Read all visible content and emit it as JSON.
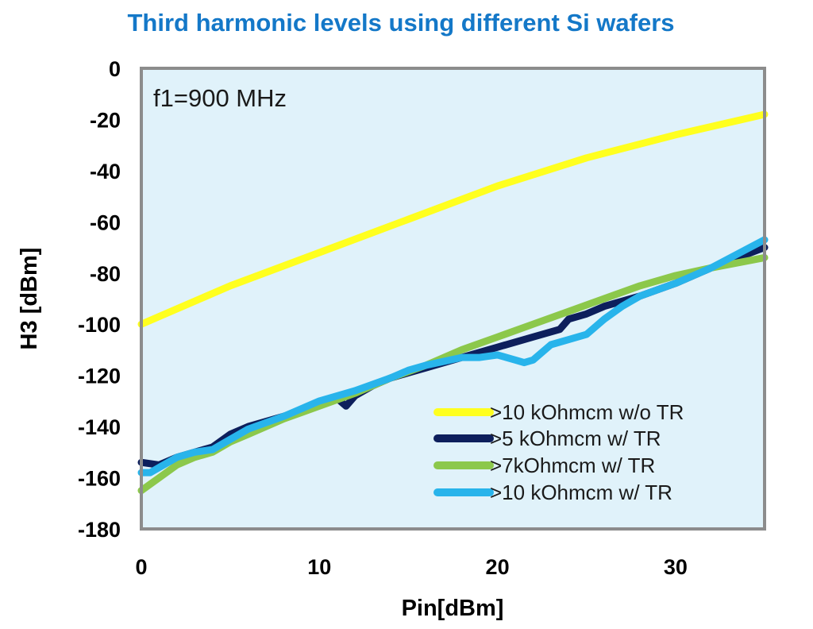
{
  "chart_data": {
    "type": "line",
    "title": "Third harmonic levels using different Si wafers",
    "xlabel": "Pin[dBm]",
    "ylabel": "H3 [dBm]",
    "annotation": "f1=900 MHz",
    "xlim": [
      0,
      35
    ],
    "ylim": [
      -180,
      0
    ],
    "x_ticks": [
      0,
      10,
      20,
      30
    ],
    "y_ticks": [
      0,
      -20,
      -40,
      -60,
      -80,
      -100,
      -120,
      -140,
      -160,
      -180
    ],
    "grid": false,
    "legend_position": "bottom-right",
    "colors": {
      "title": "#1478c8",
      "plot_background": "#e0f2fa",
      "plot_border": "#8c8c8c"
    },
    "series": [
      {
        "name": ">10 kOhmcm w/o TR",
        "color": "#ffff1f",
        "x": [
          0,
          5,
          10,
          15,
          20,
          25,
          30,
          35
        ],
        "y": [
          -100,
          -85,
          -72,
          -59,
          -46,
          -35,
          -26,
          -18
        ]
      },
      {
        "name": ">5 kOhmcm w/ TR",
        "color": "#0d1f5c",
        "x": [
          0,
          1,
          2,
          3,
          4,
          5,
          6,
          8,
          10,
          11,
          11.5,
          12,
          13,
          14,
          15,
          16,
          18,
          20,
          22,
          23.5,
          24,
          25,
          26,
          28,
          30,
          32,
          35
        ],
        "y": [
          -154,
          -155,
          -152,
          -150,
          -148,
          -143,
          -140,
          -136,
          -131,
          -129,
          -132,
          -128,
          -124,
          -121,
          -119,
          -117,
          -113,
          -109,
          -105,
          -102,
          -98,
          -96,
          -93,
          -89,
          -84,
          -78,
          -70
        ]
      },
      {
        "name": ">7kOhmcm w/ TR",
        "color": "#8cc84b",
        "x": [
          0,
          1,
          2,
          3,
          4,
          5,
          6,
          8,
          10,
          12,
          14,
          16,
          18,
          20,
          22,
          24,
          26,
          28,
          30,
          32,
          35
        ],
        "y": [
          -165,
          -160,
          -155,
          -152,
          -150,
          -146,
          -143,
          -137,
          -132,
          -127,
          -121,
          -116,
          -110,
          -105,
          -100,
          -95,
          -90,
          -85,
          -81,
          -78,
          -74
        ]
      },
      {
        "name": ">10 kOhmcm w/ TR",
        "color": "#28b4eb",
        "x": [
          0,
          0.5,
          1,
          2,
          3,
          4,
          5,
          6,
          8,
          10,
          12,
          14,
          15,
          16,
          18,
          19,
          20,
          21,
          21.5,
          22,
          23,
          24,
          25,
          26,
          27,
          28,
          30,
          32,
          35
        ],
        "y": [
          -158,
          -158,
          -156,
          -152,
          -150,
          -149,
          -145,
          -141,
          -136,
          -130,
          -126,
          -121,
          -118,
          -116,
          -113,
          -113,
          -112,
          -114,
          -115,
          -114,
          -108,
          -106,
          -104,
          -98,
          -93,
          -89,
          -84,
          -78,
          -67
        ]
      }
    ]
  }
}
